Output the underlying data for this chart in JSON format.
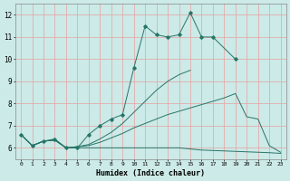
{
  "xlabel": "Humidex (Indice chaleur)",
  "x": [
    0,
    1,
    2,
    3,
    4,
    5,
    6,
    7,
    8,
    9,
    10,
    11,
    12,
    13,
    14,
    15,
    16,
    17,
    18,
    19,
    20,
    21,
    22,
    23
  ],
  "line_spiky": [
    6.6,
    6.1,
    6.3,
    6.4,
    6.0,
    6.0,
    6.6,
    7.0,
    7.3,
    7.5,
    9.6,
    11.5,
    11.1,
    11.0,
    11.1,
    12.1,
    11.0,
    11.0,
    null,
    10.0,
    null,
    null,
    null,
    null
  ],
  "line_upper": [
    6.6,
    6.1,
    6.3,
    6.35,
    6.0,
    6.05,
    6.15,
    6.4,
    6.7,
    7.1,
    7.6,
    8.1,
    8.6,
    9.0,
    9.3,
    9.5,
    null,
    null,
    null,
    null,
    null,
    null,
    null,
    null
  ],
  "line_mean": [
    6.6,
    6.1,
    6.3,
    6.35,
    6.0,
    6.05,
    6.1,
    6.25,
    6.45,
    6.65,
    6.9,
    7.1,
    7.3,
    7.5,
    7.65,
    7.8,
    7.95,
    8.1,
    8.25,
    8.45,
    7.4,
    7.3,
    6.1,
    5.8
  ],
  "line_lower": [
    6.6,
    6.1,
    6.3,
    6.35,
    6.0,
    6.0,
    6.0,
    6.0,
    6.0,
    6.0,
    6.0,
    6.0,
    6.0,
    6.0,
    6.0,
    5.95,
    5.9,
    5.88,
    5.86,
    5.84,
    5.82,
    5.8,
    5.78,
    5.75
  ],
  "line_color": "#277568",
  "bg_color": "#cceae7",
  "grid_color_x": "#e8a0a0",
  "grid_color_y": "#e8a0a0",
  "xlim": [
    -0.5,
    23.5
  ],
  "ylim": [
    5.5,
    12.5
  ],
  "yticks": [
    6,
    7,
    8,
    9,
    10,
    11,
    12
  ],
  "xticks": [
    0,
    1,
    2,
    3,
    4,
    5,
    6,
    7,
    8,
    9,
    10,
    11,
    12,
    13,
    14,
    15,
    16,
    17,
    18,
    19,
    20,
    21,
    22,
    23
  ]
}
